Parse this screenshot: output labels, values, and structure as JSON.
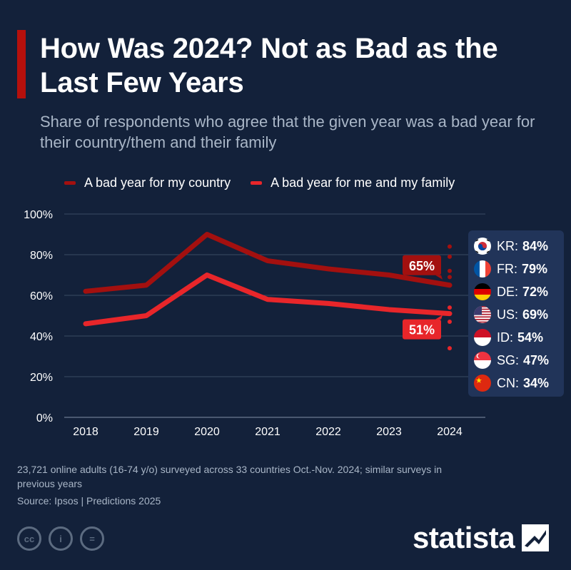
{
  "header": {
    "title": "How Was 2024? Not as Bad as the Last Few Years",
    "subtitle": "Share of respondents who agree that the given year was a bad year for their country/them and their family",
    "accent_color": "#b5100c"
  },
  "chart_data": {
    "type": "line",
    "x": [
      "2018",
      "2019",
      "2020",
      "2021",
      "2022",
      "2023",
      "2024"
    ],
    "ylim": [
      0,
      100
    ],
    "yticks": [
      0,
      20,
      40,
      60,
      80,
      100
    ],
    "ytick_labels": [
      "0%",
      "20%",
      "40%",
      "60%",
      "80%",
      "100%"
    ],
    "grid": true,
    "legend_position": "top",
    "series": [
      {
        "name": "A bad year for my country",
        "values": [
          62,
          65,
          90,
          77,
          73,
          70,
          65
        ],
        "color": "#a3100f",
        "end_label": "65%"
      },
      {
        "name": "A bad year for me and my family",
        "values": [
          46,
          50,
          70,
          58,
          56,
          53,
          51
        ],
        "color": "#e8262a",
        "end_label": "51%"
      }
    ],
    "country_dots_2024": {
      "country": [
        84,
        79,
        72,
        69
      ],
      "family": [
        54,
        47,
        34
      ]
    }
  },
  "countries": [
    {
      "code": "KR",
      "value": "84%",
      "icon": "south-korea-flag-icon"
    },
    {
      "code": "FR",
      "value": "79%",
      "icon": "france-flag-icon"
    },
    {
      "code": "DE",
      "value": "72%",
      "icon": "germany-flag-icon"
    },
    {
      "code": "US",
      "value": "69%",
      "icon": "usa-flag-icon"
    },
    {
      "code": "ID",
      "value": "54%",
      "icon": "indonesia-flag-icon"
    },
    {
      "code": "SG",
      "value": "47%",
      "icon": "singapore-flag-icon"
    },
    {
      "code": "CN",
      "value": "34%",
      "icon": "china-flag-icon"
    }
  ],
  "footer": {
    "note": "23,721 online adults (16-74 y/o) surveyed across 33 countries Oct.-Nov. 2024; similar surveys in previous years",
    "source": "Source: Ipsos | Predictions 2025",
    "cc_icons": [
      {
        "name": "creative-commons-icon",
        "glyph": "cc"
      },
      {
        "name": "attribution-icon",
        "glyph": "i"
      },
      {
        "name": "no-derivatives-icon",
        "glyph": "="
      }
    ],
    "brand": "statista"
  }
}
